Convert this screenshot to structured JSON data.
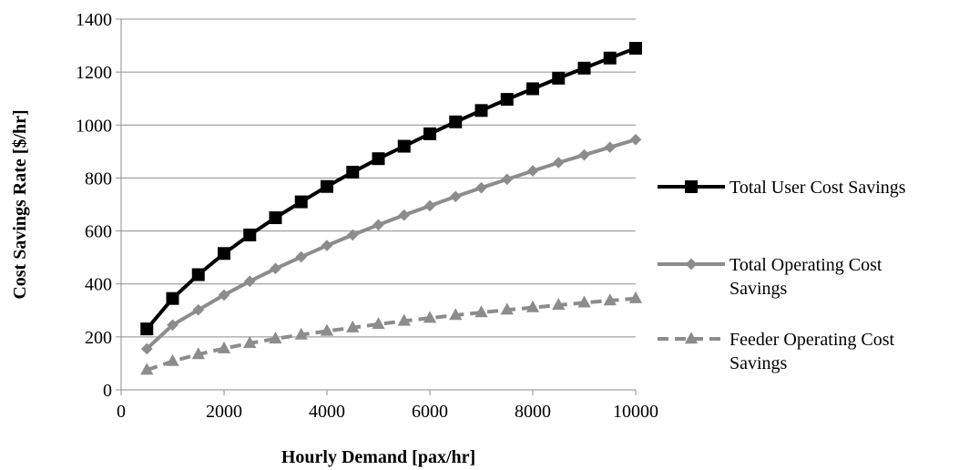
{
  "chart_data": {
    "type": "line",
    "title": "",
    "xlabel": "Hourly Demand [pax/hr]",
    "ylabel": "Cost Savings Rate [$/hr]",
    "xlim": [
      0,
      10000
    ],
    "ylim": [
      0,
      1400
    ],
    "xticks": [
      0,
      2000,
      4000,
      6000,
      8000,
      10000
    ],
    "yticks": [
      0,
      200,
      400,
      600,
      800,
      1000,
      1200,
      1400
    ],
    "grid": "horizontal",
    "legend_position": "right",
    "x": [
      500,
      1000,
      1500,
      2000,
      2500,
      3000,
      3500,
      4000,
      4500,
      5000,
      5500,
      6000,
      6500,
      7000,
      7500,
      8000,
      8500,
      9000,
      9500,
      10000
    ],
    "series": [
      {
        "name": "Total User Cost Savings",
        "legend_lines": [
          "Total User Cost Savings"
        ],
        "color": "#000000",
        "marker": "square",
        "dash": "solid",
        "values": [
          230,
          345,
          435,
          515,
          585,
          650,
          710,
          768,
          822,
          873,
          920,
          967,
          1012,
          1055,
          1097,
          1137,
          1177,
          1215,
          1253,
          1290
        ]
      },
      {
        "name": "Total Operating Cost Savings",
        "legend_lines": [
          "Total Operating Cost",
          "Savings"
        ],
        "color": "#8c8c8c",
        "marker": "diamond",
        "dash": "solid",
        "values": [
          155,
          245,
          302,
          358,
          410,
          458,
          502,
          545,
          585,
          623,
          660,
          695,
          730,
          763,
          795,
          827,
          858,
          887,
          916,
          945
        ]
      },
      {
        "name": "Feeder Operating Cost Savings",
        "legend_lines": [
          "Feeder Operating Cost",
          "Savings"
        ],
        "color": "#8c8c8c",
        "marker": "triangle",
        "dash": "dashed",
        "values": [
          75,
          108,
          134,
          156,
          176,
          193,
          208,
          222,
          235,
          248,
          260,
          271,
          282,
          292,
          302,
          311,
          320,
          329,
          337,
          345
        ]
      }
    ]
  }
}
